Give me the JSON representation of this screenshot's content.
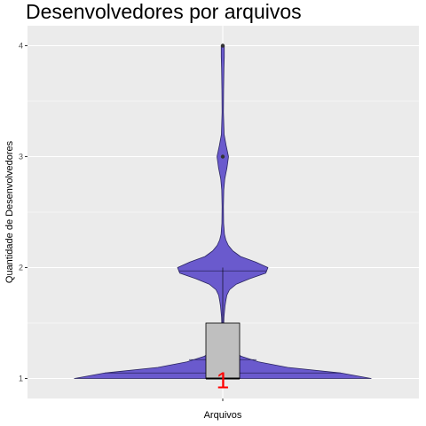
{
  "chart_data": {
    "type": "violin",
    "title": "Desenvolvedores por arquivos",
    "xlabel": "Arquivos",
    "ylabel": "Quantidade de Desenvolvedores",
    "categories": [
      ""
    ],
    "ylim": [
      0.82,
      4.18
    ],
    "yticks": [
      1,
      2,
      3,
      4
    ],
    "ytick_labels": [
      "1",
      "2",
      "3",
      "4"
    ],
    "grid": true,
    "legend": "none",
    "violin": {
      "profile": [
        [
          1.0,
          0.88
        ],
        [
          1.05,
          0.7
        ],
        [
          1.1,
          0.385
        ],
        [
          1.15,
          0.213
        ],
        [
          1.2,
          0.11
        ],
        [
          1.25,
          0.052
        ],
        [
          1.3,
          0.025
        ],
        [
          1.35,
          0.013
        ],
        [
          1.4,
          0.008
        ],
        [
          1.45,
          0.006
        ],
        [
          1.5,
          0.006
        ],
        [
          1.55,
          0.007
        ],
        [
          1.6,
          0.01
        ],
        [
          1.65,
          0.013
        ],
        [
          1.7,
          0.018
        ],
        [
          1.75,
          0.024
        ],
        [
          1.8,
          0.04
        ],
        [
          1.85,
          0.08
        ],
        [
          1.9,
          0.16
        ],
        [
          1.95,
          0.255
        ],
        [
          2.0,
          0.268
        ],
        [
          2.05,
          0.195
        ],
        [
          2.1,
          0.105
        ],
        [
          2.15,
          0.06
        ],
        [
          2.2,
          0.033
        ],
        [
          2.25,
          0.018
        ],
        [
          2.3,
          0.01
        ],
        [
          2.4,
          0.005
        ],
        [
          2.55,
          0.004
        ],
        [
          2.7,
          0.006
        ],
        [
          2.8,
          0.012
        ],
        [
          2.9,
          0.025
        ],
        [
          3.0,
          0.034
        ],
        [
          3.1,
          0.02
        ],
        [
          3.2,
          0.008
        ],
        [
          3.4,
          0.004
        ],
        [
          3.6,
          0.005
        ],
        [
          3.8,
          0.007
        ],
        [
          3.9,
          0.009
        ],
        [
          4.0,
          0.009
        ]
      ],
      "quantile_lines": [
        {
          "y": 1.05,
          "halfwidth": 0.7
        },
        {
          "y": 1.17,
          "halfwidth": 0.2
        },
        {
          "y": 1.97,
          "halfwidth": 0.262
        }
      ],
      "points": [
        4.0,
        3.0
      ],
      "fill": "#6a5acd",
      "stroke": "#2a2560"
    },
    "boxplot": {
      "q1": 1.0,
      "median": 1.0,
      "q3": 1.5,
      "whisker_low": 1.0,
      "whisker_high": 2.0,
      "halfwidth": 0.1,
      "fill": "#bfbfbf",
      "stroke": "#000000"
    },
    "median_label": {
      "text": "1",
      "color": "#ff0000"
    },
    "colors": {
      "panel": "#ebebeb",
      "grid": "#ffffff"
    }
  }
}
